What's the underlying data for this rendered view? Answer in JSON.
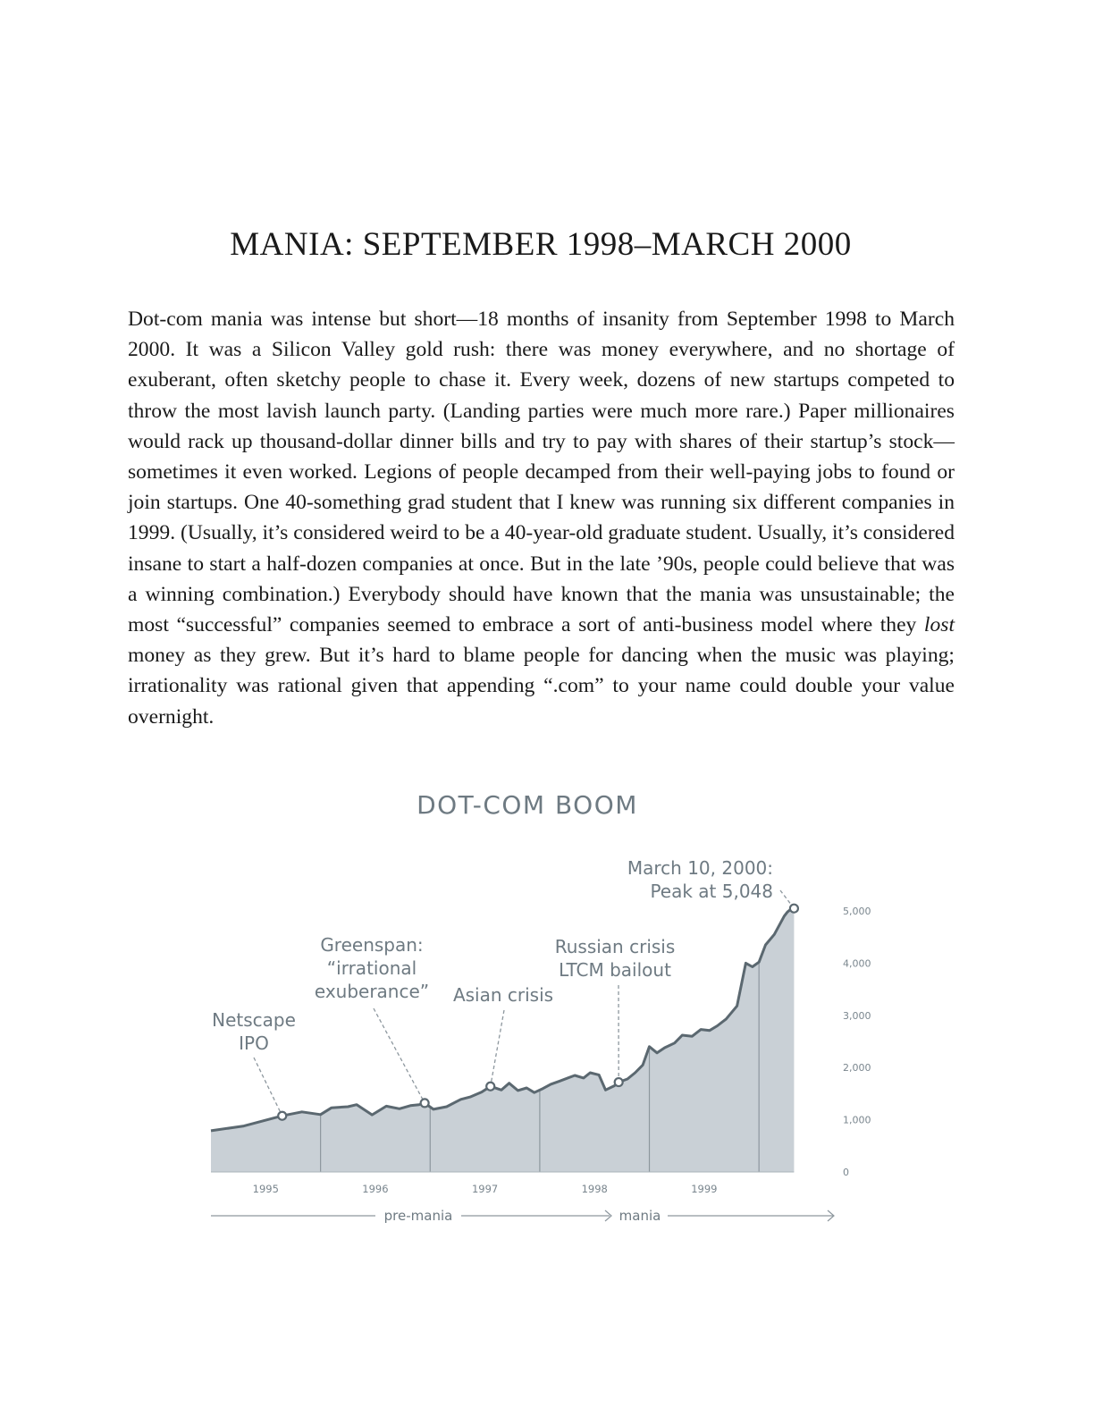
{
  "page": {
    "title": "MANIA: SEPTEMBER 1998–MARCH 2000",
    "paragraph_before_lost": "Dot-com mania was intense but short—18 months of insanity from September 1998 to March 2000. It was a Silicon Valley gold rush: there was money everywhere, and no shortage of exuberant, often sketchy people to chase it. Every week, dozens of new startups competed to throw the most lavish launch party. (Landing parties were much more rare.) Paper millionaires would rack up thousand-dollar dinner bills and try to pay with shares of their startup’s stock—sometimes it even worked. Legions of people decamped from their well-paying jobs to found or join startups. One 40-something grad student that I knew was running six different companies in 1999. (Usually, it’s considered weird to be a 40-year-old graduate student. Usually, it’s considered insane to start a half-dozen companies at once. But in the late ’90s, people could believe that was a winning combination.) Everybody should have known that the mania was unsustainable; the most “successful” companies seemed to embrace a sort of anti-business model where they ",
    "paragraph_italic": "lost",
    "paragraph_after_lost": " money as they grew. But it’s hard to blame people for dancing when the music was playing; irrationality was rational given that appending “.com” to your name could double your value overnight."
  },
  "chart_data": {
    "type": "area",
    "title": "DOT-COM BOOM",
    "xlabel": "",
    "ylabel": "",
    "x_range": [
      1994.5,
      2000.2
    ],
    "ylim": [
      0,
      5000
    ],
    "y_ticks": [
      "0",
      "1,000",
      "2,000",
      "3,000",
      "4,000",
      "5,000"
    ],
    "y_tick_values": [
      0,
      1000,
      2000,
      3000,
      4000,
      5000
    ],
    "x_tick_labels": [
      "1995",
      "1996",
      "1997",
      "1998",
      "1999"
    ],
    "x_tick_values": [
      1995,
      1996,
      1997,
      1998,
      1999
    ],
    "year_dividers": [
      1995.5,
      1996.5,
      1997.5,
      1998.5,
      1999.5
    ],
    "grid": false,
    "color": "#c9d0d6",
    "line_color": "#5b6870",
    "series": [
      {
        "x": [
          1994.5,
          1994.8,
          1995.15,
          1995.33,
          1995.5,
          1995.6,
          1995.75,
          1995.83,
          1995.97,
          1996.1,
          1996.22,
          1996.32,
          1996.4,
          1996.45,
          1996.53,
          1996.65,
          1996.78,
          1996.87,
          1996.97,
          1997.05,
          1997.15,
          1997.22,
          1997.3,
          1997.38,
          1997.45,
          1997.53,
          1997.6,
          1997.68,
          1997.82,
          1997.9,
          1997.96,
          1998.04,
          1998.1,
          1998.18,
          1998.22,
          1998.3,
          1998.37,
          1998.44,
          1998.5,
          1998.57,
          1998.64,
          1998.73,
          1998.8,
          1998.89,
          1998.97,
          1999.05,
          1999.12,
          1999.2,
          1999.3,
          1999.38,
          1999.44,
          1999.5,
          1999.56,
          1999.64,
          1999.73,
          1999.76,
          1999.8,
          1999.82
        ],
        "values": [
          790,
          880,
          1075,
          1150,
          1100,
          1230,
          1250,
          1290,
          1095,
          1260,
          1210,
          1270,
          1290,
          1320,
          1200,
          1250,
          1390,
          1440,
          1530,
          1640,
          1570,
          1700,
          1560,
          1610,
          1520,
          1600,
          1680,
          1740,
          1850,
          1800,
          1900,
          1860,
          1570,
          1650,
          1720,
          1780,
          1900,
          2050,
          2400,
          2280,
          2380,
          2470,
          2620,
          2600,
          2730,
          2710,
          2800,
          2930,
          3180,
          4000,
          3930,
          4020,
          4350,
          4550,
          4900,
          4980,
          5048,
          5060
        ]
      }
    ],
    "annotations": [
      {
        "lines": [
          "Netscape",
          "IPO"
        ],
        "x": 1995.15,
        "y": 1075
      },
      {
        "lines": [
          "Greenspan:",
          "“irrational",
          "exuberance”"
        ],
        "x": 1996.45,
        "y": 1320
      },
      {
        "lines": [
          "Asian crisis"
        ],
        "x": 1997.05,
        "y": 1640
      },
      {
        "lines": [
          "Russian crisis",
          "LTCM bailout"
        ],
        "x": 1998.22,
        "y": 1720
      },
      {
        "lines": [
          "March 10, 2000:",
          "Peak at 5,048"
        ],
        "x": 1999.82,
        "y": 5048
      }
    ],
    "phases": [
      "pre-mania",
      "mania"
    ]
  }
}
